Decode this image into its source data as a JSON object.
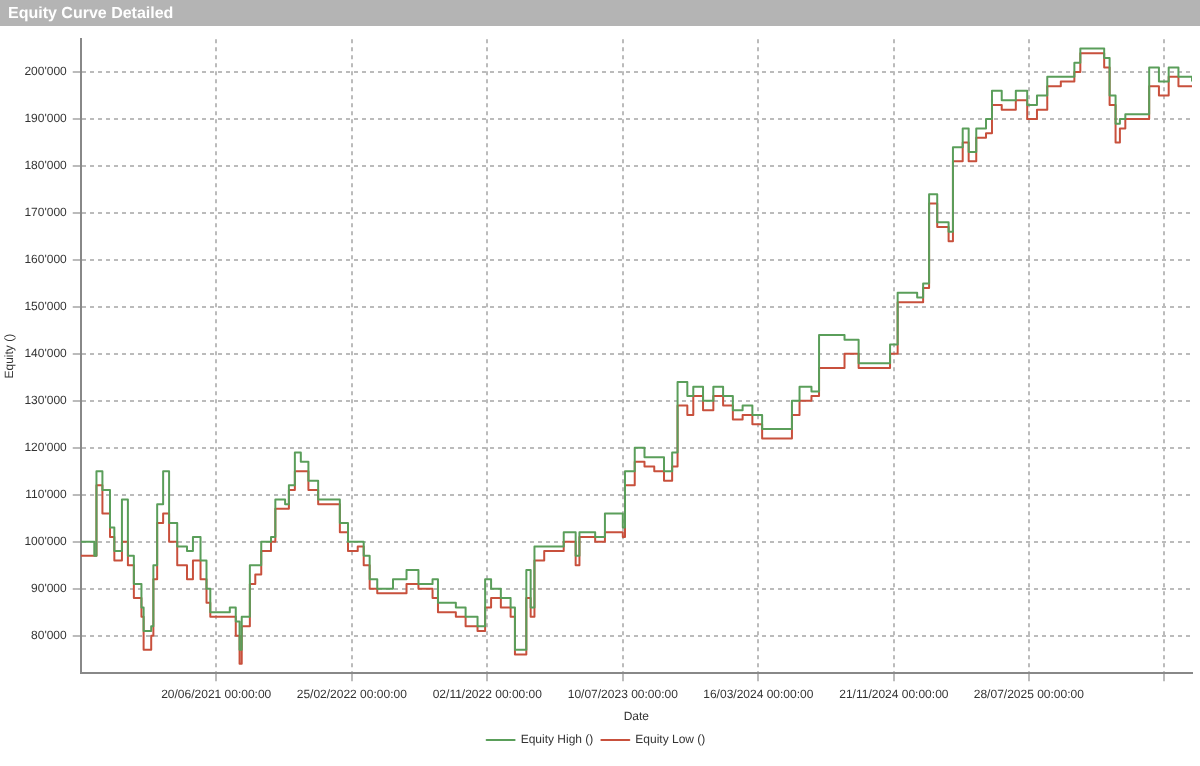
{
  "chart_data": {
    "type": "step",
    "title": "Equity Curve Detailed",
    "xlabel": "Date",
    "ylabel": "Equity ()",
    "x": [
      "2020-10-13",
      "2020-11-07",
      "2020-11-11",
      "2020-11-22",
      "2020-12-06",
      "2020-12-14",
      "2020-12-28",
      "2021-01-08",
      "2021-01-19",
      "2021-02-02",
      "2021-02-06",
      "2021-02-20",
      "2021-02-24",
      "2021-03-03",
      "2021-03-14",
      "2021-03-25",
      "2021-04-09",
      "2021-04-27",
      "2021-05-08",
      "2021-05-22",
      "2021-06-02",
      "2021-06-09",
      "2021-07-15",
      "2021-07-26",
      "2021-08-02",
      "2021-08-06",
      "2021-08-21",
      "2021-08-31",
      "2021-09-11",
      "2021-09-29",
      "2021-10-07",
      "2021-10-25",
      "2021-11-01",
      "2021-11-12",
      "2021-11-23",
      "2021-12-07",
      "2021-12-25",
      "2022-01-16",
      "2022-02-03",
      "2022-02-18",
      "2022-03-08",
      "2022-03-19",
      "2022-03-30",
      "2022-04-13",
      "2022-05-12",
      "2022-06-06",
      "2022-06-28",
      "2022-07-24",
      "2022-08-03",
      "2022-09-05",
      "2022-09-23",
      "2022-10-15",
      "2022-10-29",
      "2022-11-09",
      "2022-11-27",
      "2022-12-15",
      "2022-12-23",
      "2023-01-10",
      "2023-01-13",
      "2023-01-21",
      "2023-01-28",
      "2023-02-15",
      "2023-03-23",
      "2023-04-14",
      "2023-04-21",
      "2023-05-20",
      "2023-06-07",
      "2023-07-10",
      "2023-07-14",
      "2023-08-01",
      "2023-08-19",
      "2023-09-06",
      "2023-09-24",
      "2023-10-09",
      "2023-10-19",
      "2023-11-06",
      "2023-11-17",
      "2023-12-05",
      "2023-12-24",
      "2024-01-11",
      "2024-01-29",
      "2024-02-16",
      "2024-03-05",
      "2024-03-23",
      "2024-04-25",
      "2024-05-17",
      "2024-05-31",
      "2024-06-22",
      "2024-07-06",
      "2024-08-22",
      "2024-09-17",
      "2024-10-08",
      "2024-11-14",
      "2024-11-28",
      "2025-01-03",
      "2025-01-14",
      "2025-01-25",
      "2025-02-09",
      "2025-03-02",
      "2025-03-10",
      "2025-03-28",
      "2025-04-08",
      "2025-04-22",
      "2025-05-10",
      "2025-05-21",
      "2025-06-08",
      "2025-07-04",
      "2025-07-25",
      "2025-08-12",
      "2025-08-31",
      "2025-09-25",
      "2025-10-20",
      "2025-10-31",
      "2025-11-29",
      "2025-12-14",
      "2025-12-24",
      "2026-01-04",
      "2026-01-12",
      "2026-01-22",
      "2026-02-24",
      "2026-03-07",
      "2026-03-25",
      "2026-04-12",
      "2026-04-30",
      "2026-05-25"
    ],
    "series": [
      {
        "name": "Equity High ()",
        "color": "#5a9e5a",
        "values": [
          100000,
          97000,
          115000,
          111000,
          103000,
          98000,
          109000,
          97000,
          91000,
          86000,
          81000,
          82000,
          95000,
          108000,
          115000,
          104000,
          99000,
          98000,
          101000,
          96000,
          90000,
          85000,
          86000,
          83000,
          77000,
          84000,
          95000,
          95000,
          100000,
          101000,
          109000,
          108000,
          112000,
          119000,
          117000,
          113000,
          109000,
          109000,
          104000,
          100000,
          100000,
          97000,
          92000,
          90000,
          92000,
          94000,
          91000,
          92000,
          87000,
          86000,
          84000,
          82000,
          92000,
          90000,
          88000,
          86000,
          77000,
          77000,
          94000,
          86000,
          99000,
          99000,
          102000,
          97000,
          102000,
          101000,
          106000,
          103000,
          115000,
          120000,
          118000,
          118000,
          115000,
          119000,
          134000,
          131000,
          133000,
          130000,
          133000,
          131000,
          128000,
          129000,
          127000,
          124000,
          124000,
          130000,
          133000,
          132000,
          144000,
          143000,
          138000,
          138000,
          142000,
          153000,
          152000,
          155000,
          174000,
          168000,
          166000,
          184000,
          188000,
          183000,
          188000,
          190000,
          196000,
          194000,
          196000,
          193000,
          195000,
          199000,
          199000,
          202000,
          205000,
          205000,
          203000,
          195000,
          189000,
          190000,
          191000,
          191000,
          201000,
          198000,
          201000,
          199000,
          198000
        ]
      },
      {
        "name": "Equity Low ()",
        "color": "#c8503c",
        "values": [
          97000,
          97000,
          112000,
          106000,
          101000,
          96000,
          100000,
          95000,
          88000,
          84000,
          77000,
          80000,
          92000,
          104000,
          106000,
          100000,
          95000,
          92000,
          96000,
          92000,
          87000,
          84000,
          84000,
          80000,
          74000,
          82000,
          91000,
          93000,
          98000,
          100000,
          107000,
          107000,
          111000,
          115000,
          115000,
          111000,
          108000,
          108000,
          102000,
          98000,
          99000,
          95000,
          90000,
          89000,
          89000,
          91000,
          90000,
          88000,
          85000,
          84000,
          82000,
          81000,
          86000,
          88000,
          86000,
          84000,
          76000,
          76000,
          88000,
          84000,
          96000,
          98000,
          100000,
          95000,
          101000,
          100000,
          102000,
          101000,
          112000,
          117000,
          116000,
          115000,
          113000,
          116000,
          129000,
          127000,
          131000,
          128000,
          131000,
          129000,
          126000,
          127000,
          125000,
          122000,
          122000,
          127000,
          130000,
          131000,
          137000,
          140000,
          137000,
          137000,
          140000,
          151000,
          151000,
          154000,
          172000,
          167000,
          164000,
          181000,
          185000,
          181000,
          186000,
          187000,
          193000,
          192000,
          194000,
          190000,
          192000,
          197000,
          198000,
          200000,
          204000,
          204000,
          201000,
          193000,
          185000,
          188000,
          190000,
          190000,
          197000,
          195000,
          199000,
          197000,
          197000
        ]
      }
    ],
    "xlim": [
      "2020-10-13",
      "2026-05-25"
    ],
    "xticks": [
      {
        "value": "2021-06-20",
        "label": "20/06/2021 00:00:00"
      },
      {
        "value": "2022-02-25",
        "label": "25/02/2022 00:00:00"
      },
      {
        "value": "2022-11-02",
        "label": "02/11/2022 00:00:00"
      },
      {
        "value": "2023-07-10",
        "label": "10/07/2023 00:00:00"
      },
      {
        "value": "2024-03-16",
        "label": "16/03/2024 00:00:00"
      },
      {
        "value": "2024-11-21",
        "label": "21/11/2024 00:00:00"
      },
      {
        "value": "2025-07-28",
        "label": "28/07/2025 00:00:00"
      },
      {
        "value": "2026-04-04",
        "label": null
      }
    ],
    "ylim": [
      72000,
      207000
    ],
    "yticks": [
      {
        "value": 80000,
        "label": "80'000"
      },
      {
        "value": 90000,
        "label": "90'000"
      },
      {
        "value": 100000,
        "label": "100'000"
      },
      {
        "value": 110000,
        "label": "110'000"
      },
      {
        "value": 120000,
        "label": "120'000"
      },
      {
        "value": 130000,
        "label": "130'000"
      },
      {
        "value": 140000,
        "label": "140'000"
      },
      {
        "value": 150000,
        "label": "150'000"
      },
      {
        "value": 160000,
        "label": "160'000"
      },
      {
        "value": 170000,
        "label": "170'000"
      },
      {
        "value": 180000,
        "label": "180'000"
      },
      {
        "value": 190000,
        "label": "190'000"
      },
      {
        "value": 200000,
        "label": "200'000"
      }
    ],
    "grid": true,
    "legend": "bottom",
    "marker": "none",
    "line_style": "solid"
  }
}
